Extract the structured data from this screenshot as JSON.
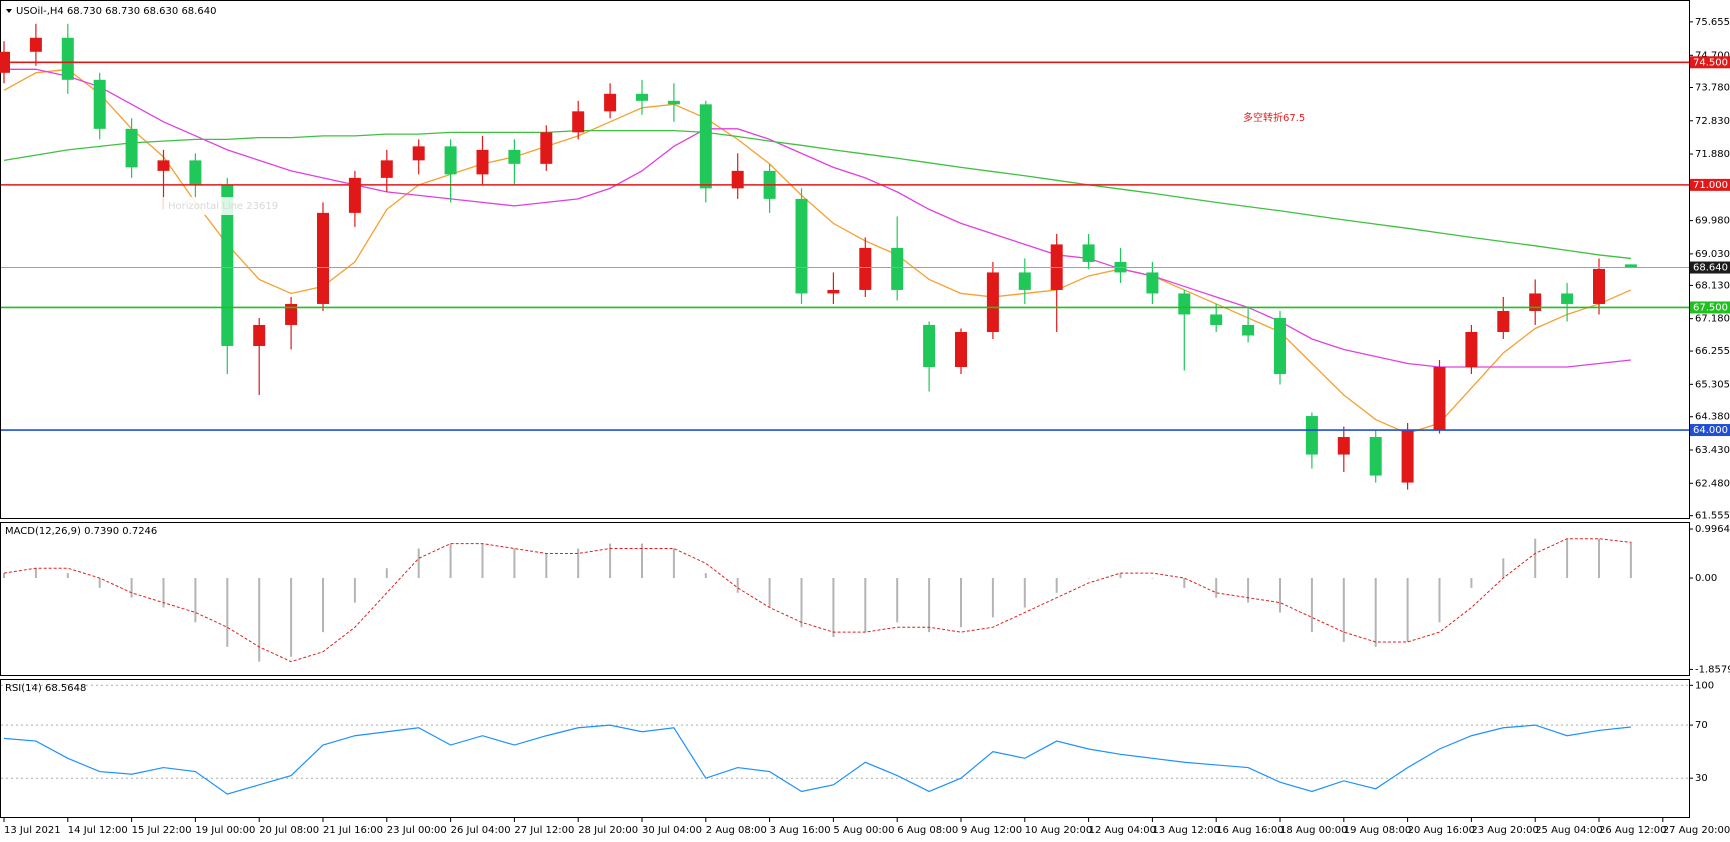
{
  "chart_data": [
    {
      "type": "candlestick",
      "title": "USOil-,H4  68.730 68.730 68.630 68.640",
      "annotation": "多空转折67.5",
      "annotation_color": "#e02020",
      "note": "Horizontal Line 23619",
      "categories": [
        "13 Jul 2021",
        null,
        "14 Jul 12:00",
        null,
        "15 Jul 22:00",
        null,
        "19 Jul 00:00",
        null,
        "20 Jul 08:00",
        null,
        "21 Jul 16:00",
        null,
        "23 Jul 00:00",
        null,
        "26 Jul 04:00",
        null,
        "27 Jul 12:00",
        null,
        "28 Jul 20:00",
        null,
        "30 Jul 04:00",
        null,
        "2 Aug 08:00",
        null,
        "3 Aug 16:00",
        null,
        "5 Aug 00:00",
        null,
        "6 Aug 08:00",
        null,
        "9 Aug 12:00",
        null,
        "10 Aug 20:00",
        null,
        "12 Aug 04:00",
        null,
        "13 Aug 12:00",
        null,
        "16 Aug 16:00",
        null,
        "18 Aug 00:00",
        null,
        "19 Aug 08:00",
        null,
        "20 Aug 16:00",
        null,
        "23 Aug 20:00",
        null,
        "25 Aug 04:00",
        null,
        "26 Aug 12:00",
        null,
        "27 Aug 20:00"
      ],
      "open": [
        74.2,
        74.8,
        75.2,
        74.0,
        72.6,
        71.4,
        71.7,
        71.0,
        66.4,
        67.0,
        67.6,
        70.2,
        71.2,
        71.7,
        72.1,
        71.3,
        72.0,
        71.6,
        72.5,
        73.1,
        73.6,
        73.4,
        73.3,
        70.9,
        71.4,
        70.6,
        67.9,
        68.0,
        69.2,
        67.0,
        65.8,
        66.8,
        68.5,
        68.0,
        69.3,
        68.8,
        68.5,
        67.9,
        67.3,
        67.0,
        67.2,
        64.4,
        63.3,
        63.8,
        62.5,
        64.0,
        65.8,
        66.8,
        67.4,
        67.9,
        67.6,
        68.73,
        null
      ],
      "high": [
        75.1,
        75.6,
        75.6,
        74.2,
        72.9,
        72.0,
        71.9,
        71.2,
        67.2,
        67.8,
        70.5,
        71.4,
        72.0,
        72.3,
        72.3,
        72.4,
        72.3,
        72.7,
        73.4,
        73.9,
        74.0,
        73.9,
        73.4,
        71.9,
        71.6,
        70.9,
        68.5,
        69.5,
        70.1,
        67.1,
        66.9,
        68.8,
        68.9,
        69.6,
        69.6,
        69.2,
        68.8,
        68.0,
        67.6,
        67.5,
        67.4,
        64.5,
        64.1,
        64.0,
        64.2,
        66.0,
        67.0,
        67.8,
        68.3,
        68.2,
        68.9,
        68.73,
        null
      ],
      "low": [
        73.9,
        74.4,
        73.6,
        72.3,
        71.2,
        70.3,
        70.6,
        65.6,
        65.0,
        66.3,
        67.4,
        69.8,
        70.8,
        71.3,
        70.5,
        71.0,
        71.0,
        71.4,
        72.3,
        72.9,
        73.0,
        72.8,
        70.5,
        70.6,
        70.2,
        67.6,
        67.6,
        67.8,
        67.7,
        65.1,
        65.6,
        66.6,
        67.6,
        66.8,
        68.6,
        68.2,
        67.6,
        65.7,
        66.8,
        66.5,
        65.3,
        62.9,
        62.8,
        62.5,
        62.3,
        63.9,
        65.6,
        66.6,
        67.0,
        67.1,
        67.3,
        68.63,
        null
      ],
      "close": [
        74.8,
        75.2,
        74.0,
        72.6,
        71.5,
        71.7,
        71.0,
        66.4,
        67.0,
        67.6,
        70.2,
        71.2,
        71.7,
        72.1,
        71.3,
        72.0,
        71.6,
        72.5,
        73.1,
        73.6,
        73.4,
        73.3,
        70.9,
        71.4,
        70.6,
        67.9,
        68.0,
        69.2,
        68.0,
        65.8,
        66.8,
        68.5,
        68.0,
        69.3,
        68.8,
        68.5,
        67.9,
        67.3,
        67.0,
        66.7,
        65.6,
        63.3,
        63.8,
        62.7,
        64.0,
        65.8,
        66.8,
        67.4,
        67.9,
        67.6,
        68.6,
        68.64,
        null
      ],
      "up_color": "#e01818",
      "down_color": "#20c85a",
      "series": [
        {
          "color": "#f5a030",
          "values": [
            73.7,
            74.2,
            74.3,
            73.6,
            72.6,
            71.8,
            70.5,
            69.3,
            68.3,
            67.9,
            68.1,
            68.8,
            70.3,
            71.0,
            71.3,
            71.6,
            71.8,
            72.1,
            72.4,
            72.8,
            73.2,
            73.3,
            72.9,
            72.3,
            71.6,
            70.7,
            69.9,
            69.4,
            69.0,
            68.3,
            67.9,
            67.8,
            67.9,
            68.0,
            68.4,
            68.6,
            68.4,
            68.0,
            67.6,
            67.2,
            66.8,
            65.9,
            65.0,
            64.3,
            63.9,
            64.2,
            65.2,
            66.2,
            66.9,
            67.3,
            67.6,
            68.0,
            null
          ]
        },
        {
          "color": "#e040e0",
          "values": [
            74.3,
            74.3,
            74.1,
            73.8,
            73.3,
            72.8,
            72.4,
            72.0,
            71.7,
            71.4,
            71.2,
            71.0,
            70.8,
            70.7,
            70.6,
            70.5,
            70.4,
            70.5,
            70.6,
            70.9,
            71.4,
            72.1,
            72.6,
            72.6,
            72.3,
            71.9,
            71.5,
            71.2,
            70.8,
            70.3,
            69.9,
            69.6,
            69.3,
            69.0,
            68.9,
            68.6,
            68.4,
            68.1,
            67.8,
            67.5,
            67.1,
            66.6,
            66.3,
            66.1,
            65.9,
            65.8,
            65.8,
            65.8,
            65.8,
            65.8,
            65.9,
            66.0,
            null
          ]
        },
        {
          "color": "#40c040",
          "values": [
            71.7,
            71.85,
            72.0,
            72.1,
            72.2,
            72.25,
            72.3,
            72.3,
            72.35,
            72.35,
            72.4,
            72.4,
            72.45,
            72.45,
            72.5,
            72.5,
            72.5,
            72.5,
            72.55,
            72.55,
            72.55,
            72.55,
            72.5,
            72.38,
            72.25,
            72.13,
            72.0,
            71.88,
            71.76,
            71.63,
            71.5,
            71.38,
            71.26,
            71.13,
            71.0,
            70.88,
            70.76,
            70.63,
            70.5,
            70.38,
            70.26,
            70.13,
            70.0,
            69.88,
            69.76,
            69.63,
            69.5,
            69.38,
            69.26,
            69.13,
            69.0,
            68.9,
            null
          ]
        }
      ],
      "hlines": [
        {
          "value": 74.5,
          "label": "74.500",
          "color": "#e01818"
        },
        {
          "value": 71,
          "label": "71.000",
          "color": "#e01818"
        },
        {
          "value": 68.64,
          "label": "68.640",
          "color": "#8aa4c4",
          "label_color": "#1c1c1c"
        },
        {
          "value": 67.5,
          "label": "67.500",
          "color": "#20c020"
        },
        {
          "value": 64,
          "label": "64.000",
          "color": "#2050d0"
        }
      ],
      "ylim": [
        61.46,
        76.25
      ],
      "yticks": [
        75.655,
        {
          "value": 74.7,
          "label": "74.700"
        },
        {
          "value": 73.78,
          "label": "73.780"
        },
        {
          "value": 72.83,
          "label": "72.830"
        },
        {
          "value": 71.88,
          "label": "71.880"
        },
        {
          "value": 69.98,
          "label": "69.980"
        },
        {
          "value": 69.03,
          "label": "69.030"
        },
        {
          "value": 68.13,
          "label": "68.130"
        },
        {
          "value": 67.18,
          "label": "67.180"
        },
        66.255,
        65.305,
        {
          "value": 64.38,
          "label": "64.380"
        },
        {
          "value": 63.43,
          "label": "63.430"
        },
        {
          "value": 62.48,
          "label": "62.480"
        },
        61.555
      ],
      "grid": false
    },
    {
      "type": "macd",
      "title": "MACD(12,26,9) 0.7390 0.7246",
      "series": [
        {
          "color": "#b4b4b4",
          "values": [
            0.1,
            0.2,
            0.1,
            -0.2,
            -0.4,
            -0.6,
            -0.9,
            -1.4,
            -1.7,
            -1.6,
            -1.1,
            -0.5,
            0.2,
            0.6,
            0.7,
            0.7,
            0.6,
            0.5,
            0.6,
            0.7,
            0.7,
            0.6,
            0.1,
            -0.3,
            -0.6,
            -1.0,
            -1.2,
            -1.1,
            -0.9,
            -1.1,
            -1.0,
            -0.8,
            -0.6,
            -0.3,
            0.0,
            0.1,
            0.0,
            -0.2,
            -0.4,
            -0.5,
            -0.7,
            -1.1,
            -1.3,
            -1.4,
            -1.3,
            -0.9,
            -0.2,
            0.4,
            0.8,
            0.8,
            0.8,
            0.739,
            null
          ]
        },
        {
          "color": "#e02020",
          "values": [
            0.1,
            0.2,
            0.2,
            0.0,
            -0.3,
            -0.5,
            -0.7,
            -1.0,
            -1.4,
            -1.7,
            -1.5,
            -1.0,
            -0.3,
            0.4,
            0.7,
            0.7,
            0.6,
            0.5,
            0.5,
            0.6,
            0.6,
            0.6,
            0.3,
            -0.2,
            -0.6,
            -0.9,
            -1.1,
            -1.1,
            -1.0,
            -1.0,
            -1.1,
            -1.0,
            -0.7,
            -0.4,
            -0.1,
            0.1,
            0.1,
            0.0,
            -0.3,
            -0.4,
            -0.5,
            -0.8,
            -1.1,
            -1.3,
            -1.3,
            -1.1,
            -0.6,
            0.0,
            0.5,
            0.8,
            0.8,
            0.7246,
            null
          ]
        }
      ],
      "ylim": [
        -1.992,
        1.119
      ],
      "yticks": [
        0.9964,
        {
          "value": 0,
          "label": "0.00"
        },
        -1.8579
      ]
    },
    {
      "type": "line",
      "title": "RSI(14) 68.5648",
      "series": [
        {
          "color": "#1e90ff",
          "values": [
            60,
            58,
            45,
            35,
            33,
            38,
            35,
            18,
            25,
            32,
            55,
            62,
            65,
            68,
            55,
            62,
            55,
            62,
            68,
            70,
            65,
            68,
            30,
            38,
            35,
            20,
            25,
            42,
            32,
            20,
            30,
            50,
            45,
            58,
            52,
            48,
            45,
            42,
            40,
            38,
            27,
            20,
            28,
            22,
            38,
            52,
            62,
            68,
            70,
            62,
            66,
            68.5648,
            null
          ]
        }
      ],
      "ylim": [
        0,
        104
      ],
      "yticks": [
        100,
        70,
        30
      ]
    }
  ]
}
